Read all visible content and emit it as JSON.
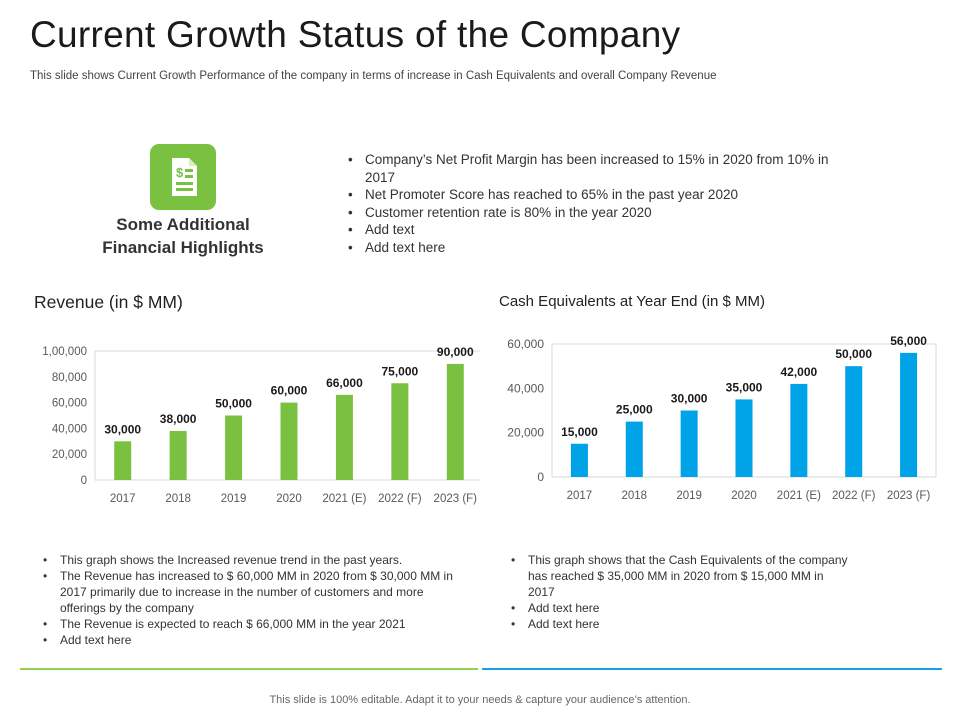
{
  "title": "Current Growth Status of the Company",
  "subtitle": "This slide shows Current Growth Performance of the company in terms of increase in Cash Equivalents and overall Company Revenue",
  "highlights": {
    "icon": "dollar-document-icon",
    "heading": "Some Additional\nFinancial Highlights",
    "items": [
      "Company’s Net Profit Margin has been increased to 15% in 2020 from 10% in 2017",
      "Net Promoter Score has reached to 65% in the past year 2020",
      "Customer retention rate is 80% in the year 2020",
      "Add text",
      "Add text here"
    ]
  },
  "chart_data": [
    {
      "type": "bar",
      "title": "Revenue (in $ MM)",
      "categories": [
        "2017",
        "2018",
        "2019",
        "2020",
        "2021 (E)",
        "2022 (F)",
        "2023 (F)"
      ],
      "values": [
        30000,
        38000,
        50000,
        60000,
        66000,
        75000,
        90000
      ],
      "value_labels": [
        "30,000",
        "38,000",
        "50,000",
        "60,000",
        "66,000",
        "75,000",
        "90,000"
      ],
      "yticks": [
        0,
        20000,
        40000,
        60000,
        80000,
        100000
      ],
      "ytick_labels": [
        "0",
        "20,000",
        "40,000",
        "60,000",
        "80,000",
        "1,00,000"
      ],
      "ylim": [
        0,
        100000
      ],
      "grid": false,
      "color": "#7ac142"
    },
    {
      "type": "bar",
      "title": "Cash Equivalents at Year End (in $ MM)",
      "categories": [
        "2017",
        "2018",
        "2019",
        "2020",
        "2021 (E)",
        "2022 (F)",
        "2023 (F)"
      ],
      "values": [
        15000,
        25000,
        30000,
        35000,
        42000,
        50000,
        56000
      ],
      "value_labels": [
        "15,000",
        "25,000",
        "30,000",
        "35,000",
        "42,000",
        "50,000",
        "56,000"
      ],
      "yticks": [
        0,
        20000,
        40000,
        60000
      ],
      "ytick_labels": [
        "0",
        "20,000",
        "40,000",
        "60,000"
      ],
      "ylim": [
        0,
        60000
      ],
      "grid": false,
      "color": "#00a2e8"
    }
  ],
  "notes": {
    "revenue": [
      "This graph shows the Increased  revenue trend in the past years.",
      "The Revenue  has increased  to $ 60,000 MM  in 2020 from $ 30,000 MM  in 2017  primarily due to increase  in the number of customers and more offerings by the company",
      "The Revenue  is expected  to reach $ 66,000 MM  in the year 2021",
      "Add text here"
    ],
    "cash": [
      "This graph shows that the Cash Equivalents of the company has reached  $ 35,000 MM  in 2020 from $ 15,000 MM  in 2017",
      "Add text here",
      "Add text here"
    ]
  },
  "colors": {
    "green": "#7ac142",
    "blue": "#00a2e8",
    "green_rule": "#92d050",
    "blue_rule": "#1ba1e2"
  },
  "footer": "This slide is 100% editable. Adapt it to your needs & capture your audience’s attention."
}
